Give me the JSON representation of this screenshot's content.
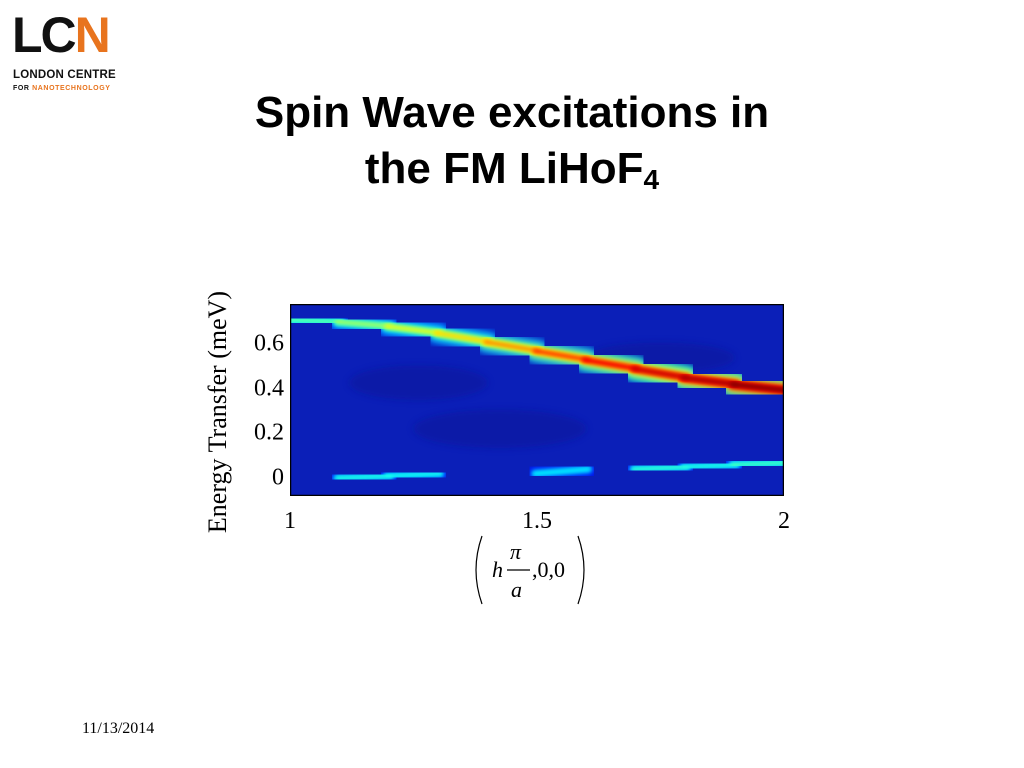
{
  "logo": {
    "letters_lc": "LC",
    "letter_n": "N",
    "line1": "LONDON CENTRE",
    "line2_prefix": "FOR ",
    "line2_highlight": "NANOTECHNOLOGY",
    "brand_color": "#e8741e"
  },
  "title": {
    "line1": "Spin Wave excitations in",
    "line2": "the FM LiHoF",
    "line2_sub": "4"
  },
  "footer": {
    "date": "11/13/2014"
  },
  "chart_data": {
    "type": "heatmap",
    "title": "",
    "ylabel": "Energy Transfer (meV)",
    "xlabel": "(hπ/a,0,0)",
    "xlabel_parts": {
      "h": "h",
      "num": "π",
      "den": "a",
      "rest": ",0,0"
    },
    "xlim": [
      1,
      2
    ],
    "ylim": [
      -0.08,
      0.78
    ],
    "xticks": [
      1,
      1.5,
      2
    ],
    "xtick_labels": [
      "1",
      "1.5",
      "2"
    ],
    "yticks": [
      0,
      0.2,
      0.4,
      0.6
    ],
    "ytick_labels": [
      "0",
      "0.2",
      "0.4",
      "0.6"
    ],
    "colormap": [
      "#00008f",
      "#0000ff",
      "#00ffff",
      "#ffff00",
      "#ff0000",
      "#800000"
    ],
    "background_color": "#0b1fb8",
    "bands": [
      {
        "name": "upper",
        "x": [
          1.0,
          1.1,
          1.2,
          1.3,
          1.4,
          1.5,
          1.6,
          1.7,
          1.8,
          1.9,
          2.0
        ],
        "y": [
          0.71,
          0.7,
          0.68,
          0.65,
          0.61,
          0.57,
          0.53,
          0.49,
          0.45,
          0.42,
          0.39
        ],
        "intensity": [
          0.45,
          0.5,
          0.55,
          0.6,
          0.65,
          0.72,
          0.78,
          0.84,
          0.9,
          0.95,
          1.0
        ]
      },
      {
        "name": "lower",
        "x": [
          1.0,
          1.1,
          1.2,
          1.3,
          1.4,
          1.5,
          1.6,
          1.7,
          1.8,
          1.9,
          2.0
        ],
        "y": [
          0.0,
          0.0,
          0.01,
          0.02,
          0.02,
          0.02,
          0.04,
          0.04,
          0.05,
          0.06,
          0.07
        ],
        "intensity": [
          0.55,
          0.42,
          0.42,
          0.4,
          0.4,
          0.38,
          0.4,
          0.45,
          0.42,
          0.42,
          0.48
        ]
      }
    ]
  }
}
